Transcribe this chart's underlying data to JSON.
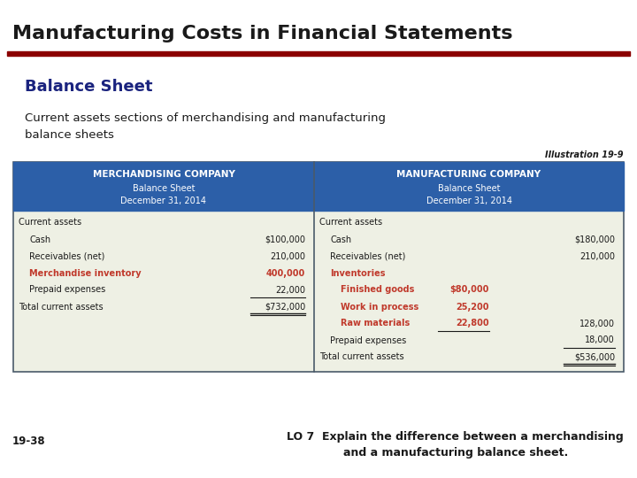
{
  "title": "Manufacturing Costs in Financial Statements",
  "title_color": "#1a1a1a",
  "title_line_color": "#8b0000",
  "subtitle": "Balance Sheet",
  "subtitle_color": "#1a237e",
  "desc_line1": "Current assets sections of merchandising and manufacturing",
  "desc_line2": "balance sheets",
  "illustration": "Illustration 19-9",
  "footer_left": "19-38",
  "footer_right": "LO 7  Explain the difference between a merchandising\nand a manufacturing balance sheet.",
  "footer_color": "#1a1a1a",
  "header_bg": "#2c5fa8",
  "header_text_color": "#ffffff",
  "table_bg": "#eef0e4",
  "table_border": "#4a5a6a",
  "red_color": "#c0392b",
  "black_color": "#1a1a1a",
  "merch_header_line1": "MERCHANDISING COMPANY",
  "merch_header_line2": "Balance Sheet",
  "merch_header_line3": "December 31, 2014",
  "manuf_header_line1": "MANUFACTURING COMPANY",
  "manuf_header_line2": "Balance Sheet",
  "manuf_header_line3": "December 31, 2014",
  "merch_rows": [
    {
      "label": "Current assets",
      "indent": 0,
      "value": "",
      "bold": false,
      "red": false
    },
    {
      "label": "Cash",
      "indent": 1,
      "value": "$100,000",
      "bold": false,
      "red": false
    },
    {
      "label": "Receivables (net)",
      "indent": 1,
      "value": "210,000",
      "bold": false,
      "red": false
    },
    {
      "label": "Merchandise inventory",
      "indent": 1,
      "value": "400,000",
      "bold": true,
      "red": true
    },
    {
      "label": "Prepaid expenses",
      "indent": 1,
      "value": "22,000",
      "bold": false,
      "red": false
    },
    {
      "label": "Total current assets",
      "indent": 0,
      "value": "$732,000",
      "bold": false,
      "red": false
    }
  ],
  "manuf_rows": [
    {
      "label": "Current assets",
      "indent": 0,
      "value": "",
      "sub_value": "",
      "bold": false,
      "red": false
    },
    {
      "label": "Cash",
      "indent": 1,
      "value": "",
      "sub_value": "$180,000",
      "bold": false,
      "red": false
    },
    {
      "label": "Receivables (net)",
      "indent": 1,
      "value": "",
      "sub_value": "210,000",
      "bold": false,
      "red": false
    },
    {
      "label": "Inventories",
      "indent": 1,
      "value": "",
      "sub_value": "",
      "bold": true,
      "red": true
    },
    {
      "label": "Finished goods",
      "indent": 2,
      "value": "$80,000",
      "sub_value": "",
      "bold": true,
      "red": true
    },
    {
      "label": "Work in process",
      "indent": 2,
      "value": "25,200",
      "sub_value": "",
      "bold": true,
      "red": true
    },
    {
      "label": "Raw materials",
      "indent": 2,
      "value": "22,800",
      "sub_value": "128,000",
      "bold": true,
      "red": true
    },
    {
      "label": "Prepaid expenses",
      "indent": 1,
      "value": "",
      "sub_value": "18,000",
      "bold": false,
      "red": false
    },
    {
      "label": "Total current assets",
      "indent": 0,
      "value": "",
      "sub_value": "$536,000",
      "bold": false,
      "red": false
    }
  ]
}
